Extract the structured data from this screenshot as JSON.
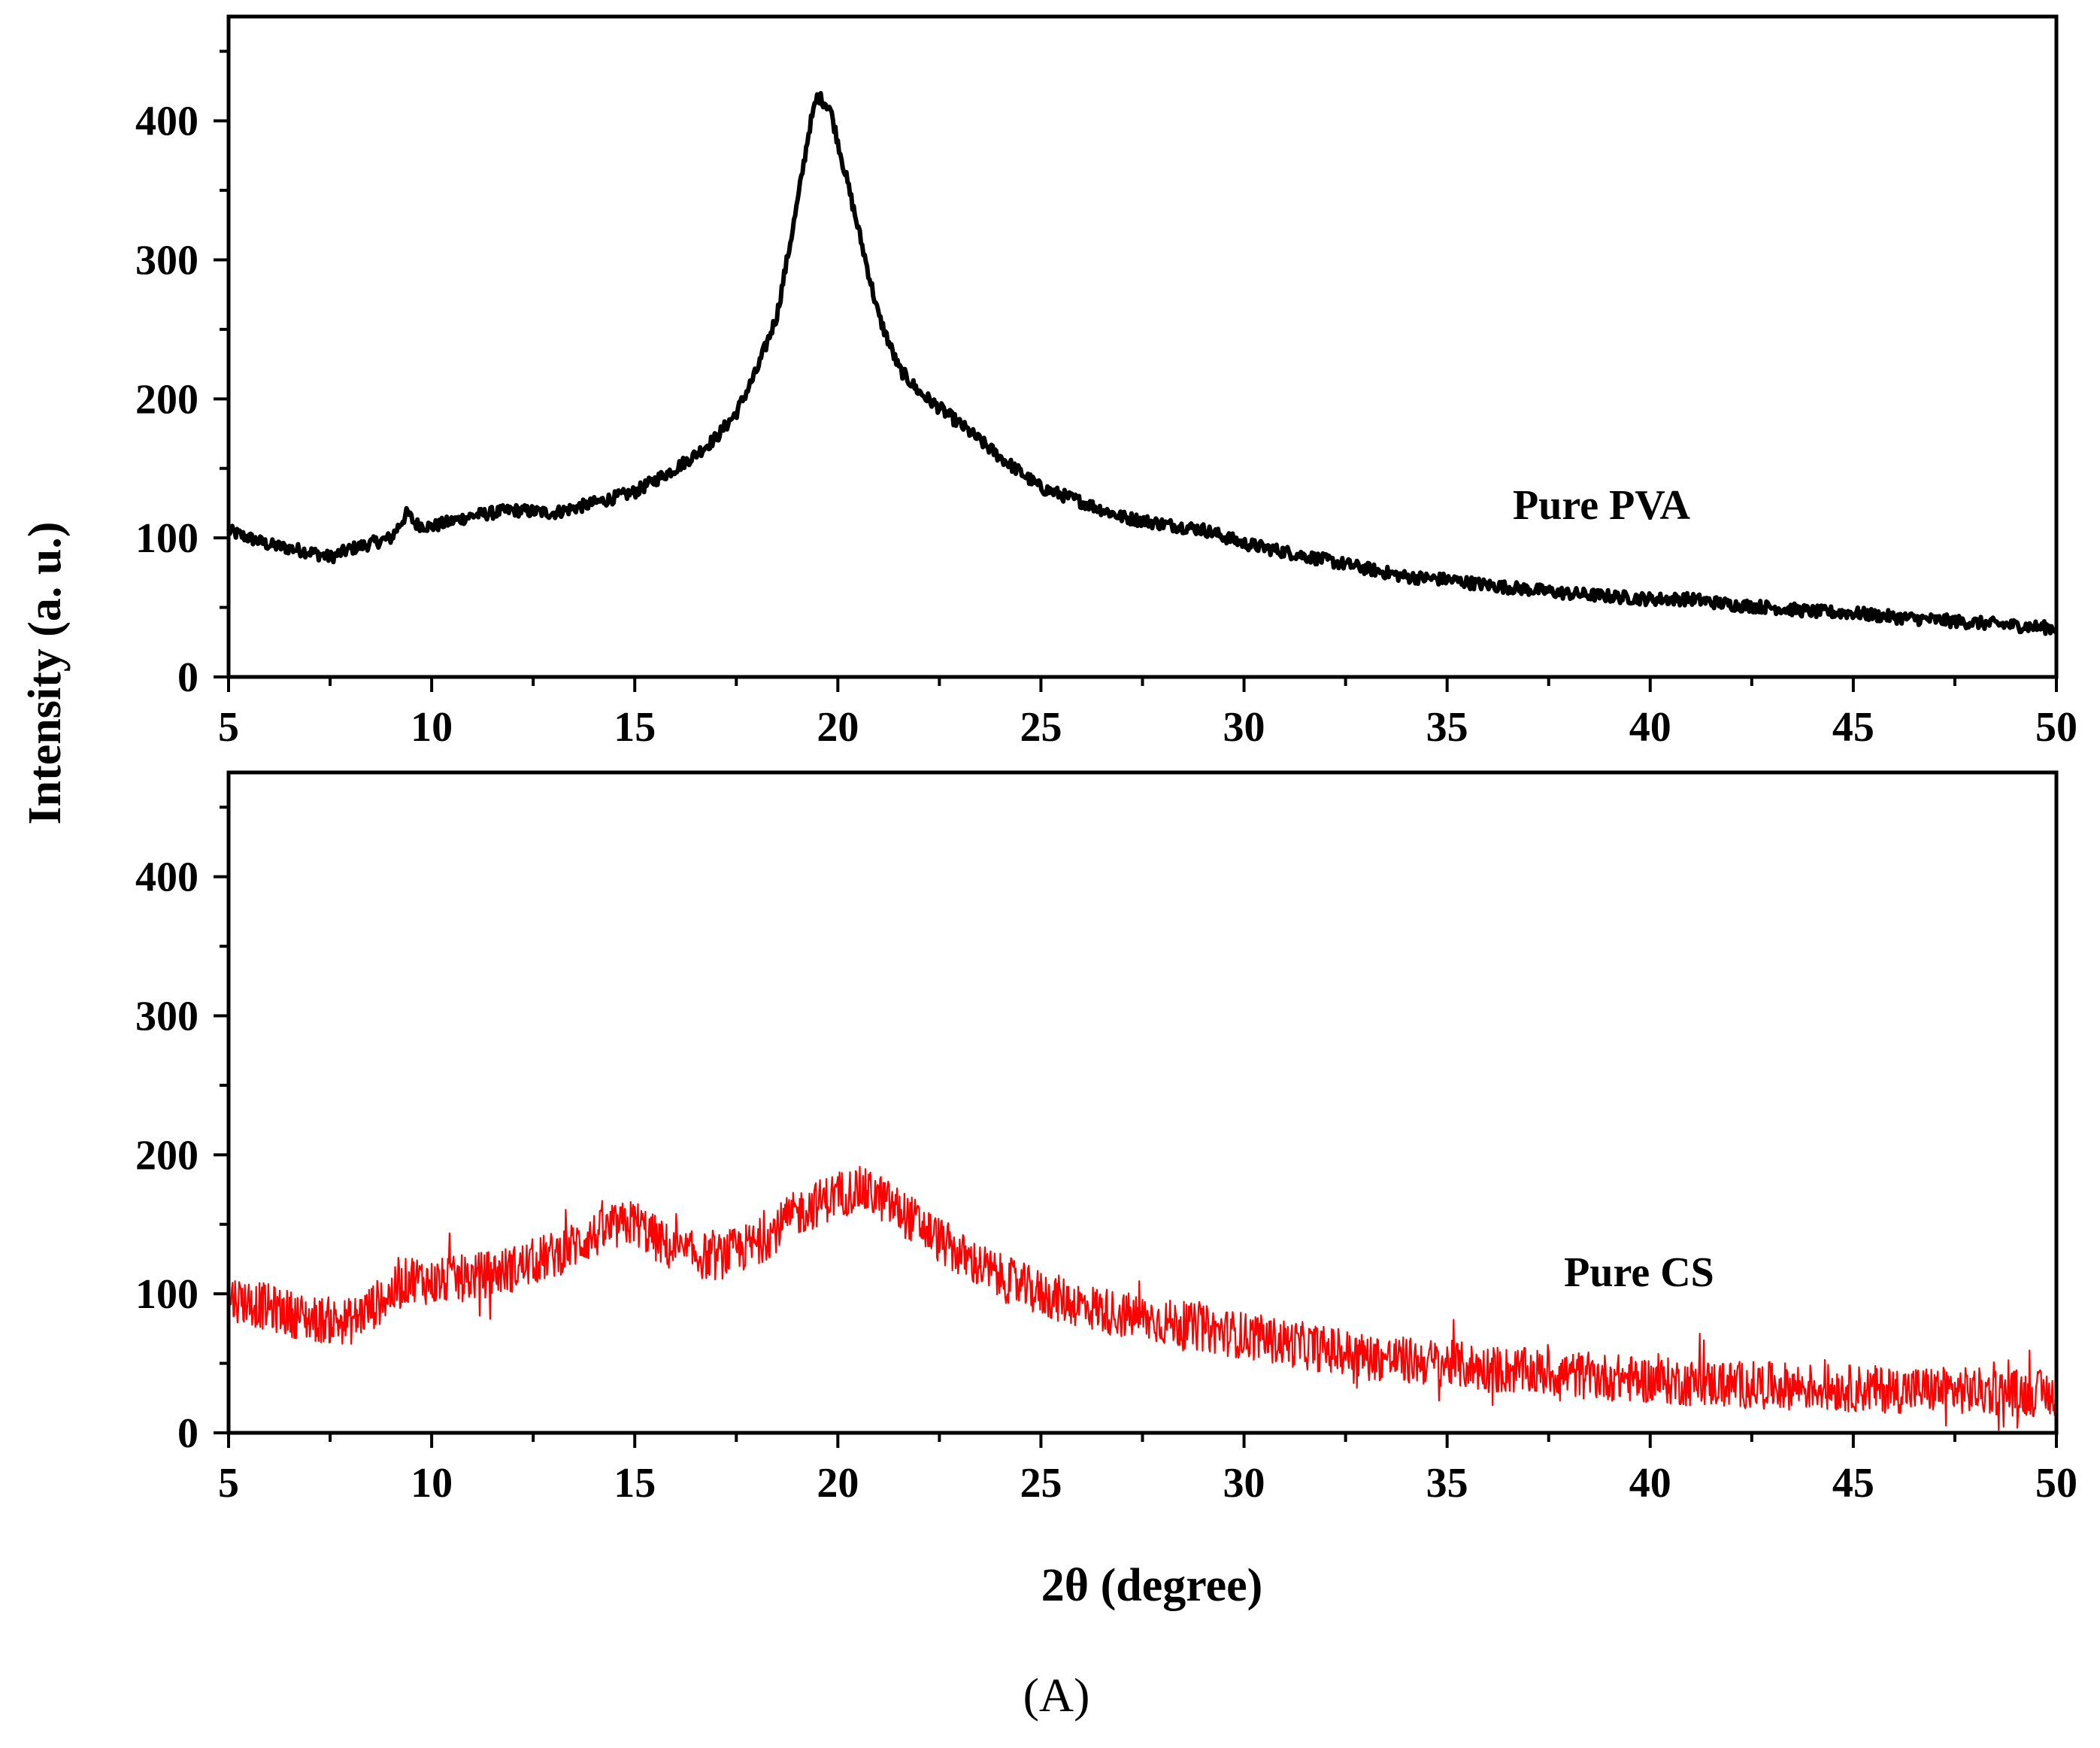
{
  "chart_data": [
    {
      "type": "line",
      "panel": "top",
      "series_label": "Pure PVA",
      "color": "#000000",
      "xlim": [
        5,
        50
      ],
      "ylim": [
        0,
        475
      ],
      "x_ticks": [
        5,
        10,
        15,
        20,
        25,
        30,
        35,
        40,
        45,
        50
      ],
      "y_ticks": [
        0,
        100,
        200,
        300,
        400
      ],
      "series": [
        {
          "name": "Pure PVA",
          "x": [
            5,
            6,
            7,
            7.5,
            8,
            9,
            9.4,
            9.6,
            10,
            11,
            12,
            13,
            14,
            15,
            16,
            16.5,
            17,
            17.5,
            18,
            18.5,
            19,
            19.3,
            19.5,
            19.8,
            20.2,
            20.6,
            21,
            21.5,
            22,
            23,
            24,
            25,
            26,
            27,
            28,
            29,
            30,
            31,
            32,
            33,
            34,
            35,
            36,
            37,
            38,
            39,
            40,
            41,
            42,
            43,
            44,
            45,
            46,
            47,
            48,
            49,
            50
          ],
          "values": [
            105,
            95,
            90,
            86,
            92,
            100,
            118,
            110,
            108,
            116,
            120,
            118,
            125,
            133,
            150,
            160,
            172,
            190,
            220,
            260,
            340,
            395,
            418,
            410,
            360,
            310,
            260,
            222,
            205,
            182,
            158,
            136,
            126,
            115,
            110,
            106,
            96,
            90,
            84,
            78,
            72,
            70,
            66,
            63,
            60,
            58,
            56,
            56,
            52,
            50,
            47,
            46,
            43,
            41,
            39,
            37,
            35
          ]
        }
      ]
    },
    {
      "type": "line",
      "panel": "bottom",
      "series_label": "Pure CS",
      "color": "#ff0000",
      "xlim": [
        5,
        50
      ],
      "ylim": [
        0,
        475
      ],
      "x_ticks": [
        5,
        10,
        15,
        20,
        25,
        30,
        35,
        40,
        45,
        50
      ],
      "y_ticks": [
        0,
        100,
        200,
        300,
        400
      ],
      "xlabel": "2θ (degree)",
      "series": [
        {
          "name": "Pure CS",
          "x": [
            5,
            6,
            7,
            8,
            9,
            9.5,
            10,
            11,
            12,
            13,
            14,
            15,
            15.5,
            16,
            17,
            18,
            19,
            20,
            20.5,
            21,
            22,
            23,
            24,
            25,
            26,
            27,
            28,
            29,
            30,
            31,
            32,
            33,
            34,
            35,
            36,
            37,
            38,
            39,
            40,
            41,
            42,
            43,
            44,
            45,
            46,
            47,
            48,
            49,
            50
          ],
          "values": [
            98,
            90,
            82,
            80,
            100,
            112,
            108,
            112,
            118,
            128,
            142,
            152,
            140,
            130,
            126,
            136,
            158,
            172,
            175,
            170,
            150,
            128,
            112,
            100,
            92,
            85,
            80,
            75,
            70,
            65,
            60,
            55,
            52,
            50,
            46,
            44,
            42,
            40,
            38,
            36,
            35,
            34,
            33,
            32,
            31,
            31,
            30,
            29,
            28
          ]
        }
      ]
    }
  ],
  "ylabel": "Intensity (a. u.)",
  "panel_label": "(A)"
}
